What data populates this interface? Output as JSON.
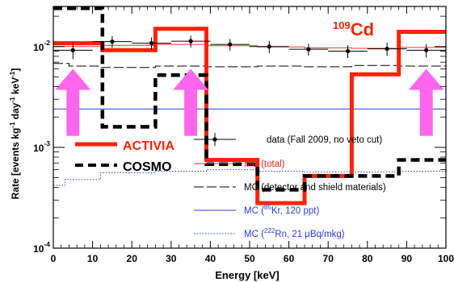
{
  "chart_data": {
    "type": "line",
    "xlabel": "Energy [keV]",
    "ylabel_parts": [
      "Rate [events kg",
      "-1",
      " day",
      "-1",
      " keV",
      "-1",
      "]"
    ],
    "x_scale": "linear",
    "y_scale": "log",
    "xlim": [
      0,
      100
    ],
    "ylim": [
      0.0001,
      0.025
    ],
    "x_ticks": [
      0,
      10,
      20,
      30,
      40,
      50,
      60,
      70,
      80,
      90,
      100
    ],
    "x_tick_labels": [
      "0",
      "10",
      "20",
      "30",
      "40",
      "50",
      "60",
      "70",
      "80",
      "90",
      "100"
    ],
    "y_ticks": [
      0.0001,
      0.001,
      0.01
    ],
    "y_tick_labels": [
      {
        "base": "10",
        "exp": "-4"
      },
      {
        "base": "10",
        "exp": "-3"
      },
      {
        "base": "10",
        "exp": "-2"
      }
    ],
    "annotation": {
      "sup": "109",
      "text": "Cd",
      "color": "#ff2200"
    },
    "data_points": {
      "name": "data (Fall 2009, no veto cut)",
      "x": [
        5,
        15,
        25,
        35,
        45,
        55,
        65,
        75,
        85,
        95
      ],
      "y": [
        0.0092,
        0.0112,
        0.0108,
        0.0113,
        0.0105,
        0.01,
        0.0094,
        0.009,
        0.0095,
        0.0092
      ],
      "x_half_width": 5,
      "y_err": [
        0.0017,
        0.0015,
        0.0015,
        0.0015,
        0.0014,
        0.0014,
        0.0013,
        0.0013,
        0.0014,
        0.0014
      ]
    },
    "bin_edges": [
      0,
      12.5,
      26,
      39,
      52,
      64,
      76,
      88,
      100
    ],
    "series": [
      {
        "name": "ACTIVIA",
        "color": "#ff2200",
        "style": "solid-thick",
        "values": [
          0.0108,
          0.0092,
          0.015,
          0.00075,
          0.00028,
          0.00052,
          0.0053,
          0.014
        ]
      },
      {
        "name": "COSMO",
        "color": "#000000",
        "style": "dashed-thick",
        "values": [
          0.024,
          0.0016,
          0.0052,
          0.00068,
          0.00038,
          0.00052,
          0.00052,
          0.00075
        ]
      }
    ],
    "mc_lines": [
      {
        "name": "MC (total)",
        "color": "#ee3030",
        "style": "solid-thin",
        "x": [
          0,
          12.5,
          12.5,
          26,
          26,
          39,
          39,
          52,
          52,
          64,
          64,
          76,
          76,
          88,
          88,
          100
        ],
        "y": [
          0.01,
          0.01,
          0.0103,
          0.0103,
          0.0105,
          0.0105,
          0.0102,
          0.0102,
          0.0099,
          0.0099,
          0.0097,
          0.0097,
          0.0096,
          0.0096,
          0.0098,
          0.0098
        ]
      },
      {
        "name": "MC (detector and shield materials)",
        "color": "#000000",
        "style": "long-dash",
        "x": [
          0,
          4,
          4,
          12,
          12,
          26,
          26,
          39,
          39,
          52,
          52,
          64,
          64,
          76,
          76,
          88,
          88,
          100
        ],
        "y": [
          0.0068,
          0.0068,
          0.0064,
          0.0064,
          0.0062,
          0.0062,
          0.0064,
          0.0064,
          0.0063,
          0.0063,
          0.0064,
          0.0064,
          0.0063,
          0.0063,
          0.0065,
          0.0065,
          0.0064,
          0.0064
        ]
      },
      {
        "name_parts": [
          "MC (",
          "85",
          "Kr, 120 ppt)"
        ],
        "color": "#2a3adf",
        "style": "solid-thin",
        "x": [
          0,
          100
        ],
        "y": [
          0.0024,
          0.0024
        ]
      },
      {
        "name_parts": [
          "MC (",
          "222",
          "Rn, 21 μBq/mkg)"
        ],
        "color": "#2a3adf",
        "style": "dotted",
        "x": [
          0,
          3,
          3,
          12,
          12,
          26,
          26,
          39,
          39,
          52,
          52,
          64,
          64,
          76,
          76,
          88,
          88,
          100
        ],
        "y": [
          0.00042,
          0.00042,
          0.00048,
          0.00048,
          0.00056,
          0.00056,
          0.00058,
          0.00058,
          0.0006,
          0.0006,
          0.00058,
          0.00058,
          0.00057,
          0.00057,
          0.00057,
          0.00057,
          0.00058,
          0.00058
        ]
      }
    ],
    "arrows": {
      "color": "#ff66ee",
      "x": [
        5,
        35,
        95
      ],
      "y_tail": 0.0013,
      "y_head": 0.006
    }
  },
  "legend": {
    "data_label": "data (Fall 2009, no veto cut)",
    "mc_total_label": "MC (total)",
    "mc_materials_label": "MC (detector and shield materials)",
    "mc_kr_pre": "MC (",
    "mc_kr_sup": "85",
    "mc_kr_post": "Kr, 120 ppt)",
    "mc_rn_pre": "MC (",
    "mc_rn_sup": "222",
    "mc_rn_post": "Rn, 21",
    "mc_rn_mu": "μ",
    "mc_rn_tail": "Bq/mkg)",
    "activia_label": "ACTIVIA",
    "cosmo_label": "COSMO"
  }
}
